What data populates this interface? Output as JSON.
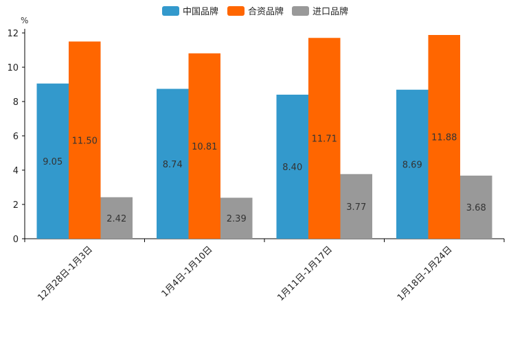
{
  "chart_data": {
    "type": "bar",
    "ylabel": "%",
    "ylim": [
      0,
      12
    ],
    "yticks": [
      "0",
      "2",
      "4",
      "6",
      "8",
      "10",
      "12"
    ],
    "categories": [
      "12月28日-1月3日",
      "1月4日-1月10日",
      "1月11日-1月17日",
      "1月18日-1月24日"
    ],
    "series": [
      {
        "name": "中国品牌",
        "color": "#3399CC",
        "values": [
          9.05,
          8.74,
          8.4,
          8.69
        ],
        "labels": [
          "9.05",
          "8.74",
          "8.40",
          "8.69"
        ]
      },
      {
        "name": "合资品牌",
        "color": "#FF6600",
        "values": [
          11.5,
          10.81,
          11.71,
          11.88
        ],
        "labels": [
          "11.50",
          "10.81",
          "11.71",
          "11.88"
        ]
      },
      {
        "name": "进口品牌",
        "color": "#999999",
        "values": [
          2.42,
          2.39,
          3.77,
          3.68
        ],
        "labels": [
          "2.42",
          "2.39",
          "3.77",
          "3.68"
        ]
      }
    ],
    "legend_position": "top-center",
    "grid": false
  }
}
